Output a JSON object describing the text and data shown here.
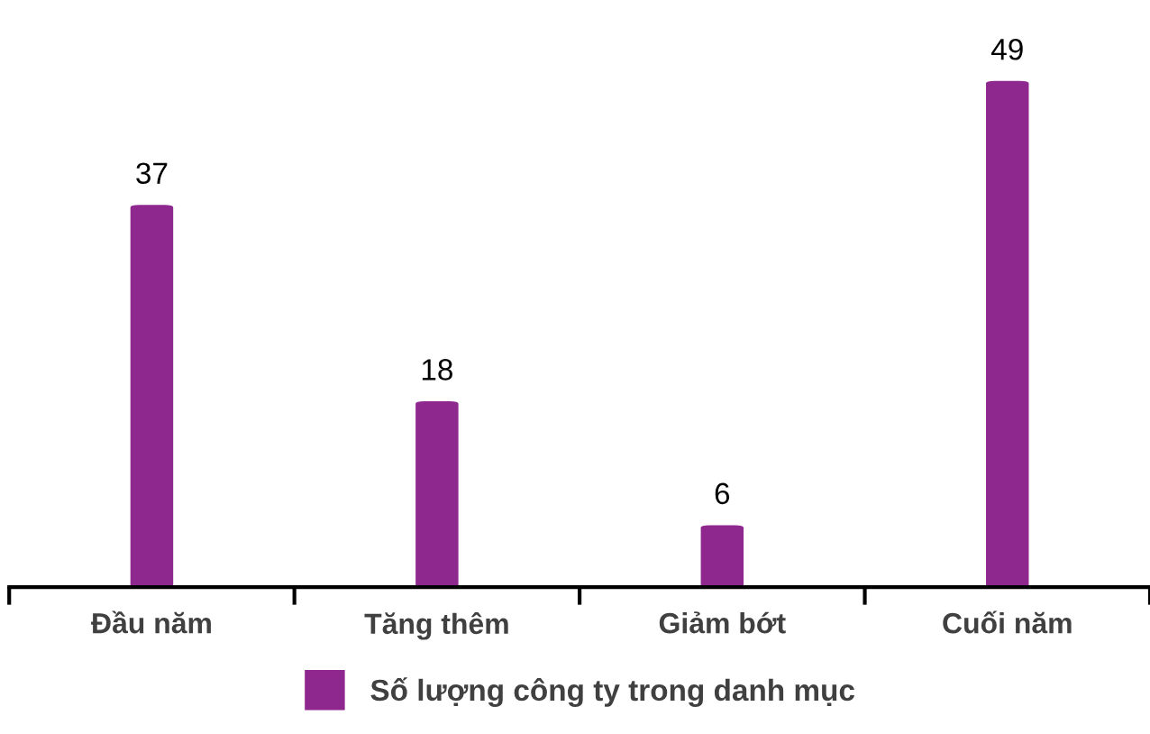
{
  "chart_data": {
    "type": "bar",
    "categories": [
      "Đầu năm",
      "Tăng thêm",
      "Giảm bớt",
      "Cuối năm"
    ],
    "series": [
      {
        "name": "Số lượng công ty trong danh mục",
        "color": "#8e278e",
        "values": [
          37,
          18,
          6,
          49
        ]
      }
    ],
    "data_labels": true,
    "legend": "bottom",
    "grid": false
  }
}
